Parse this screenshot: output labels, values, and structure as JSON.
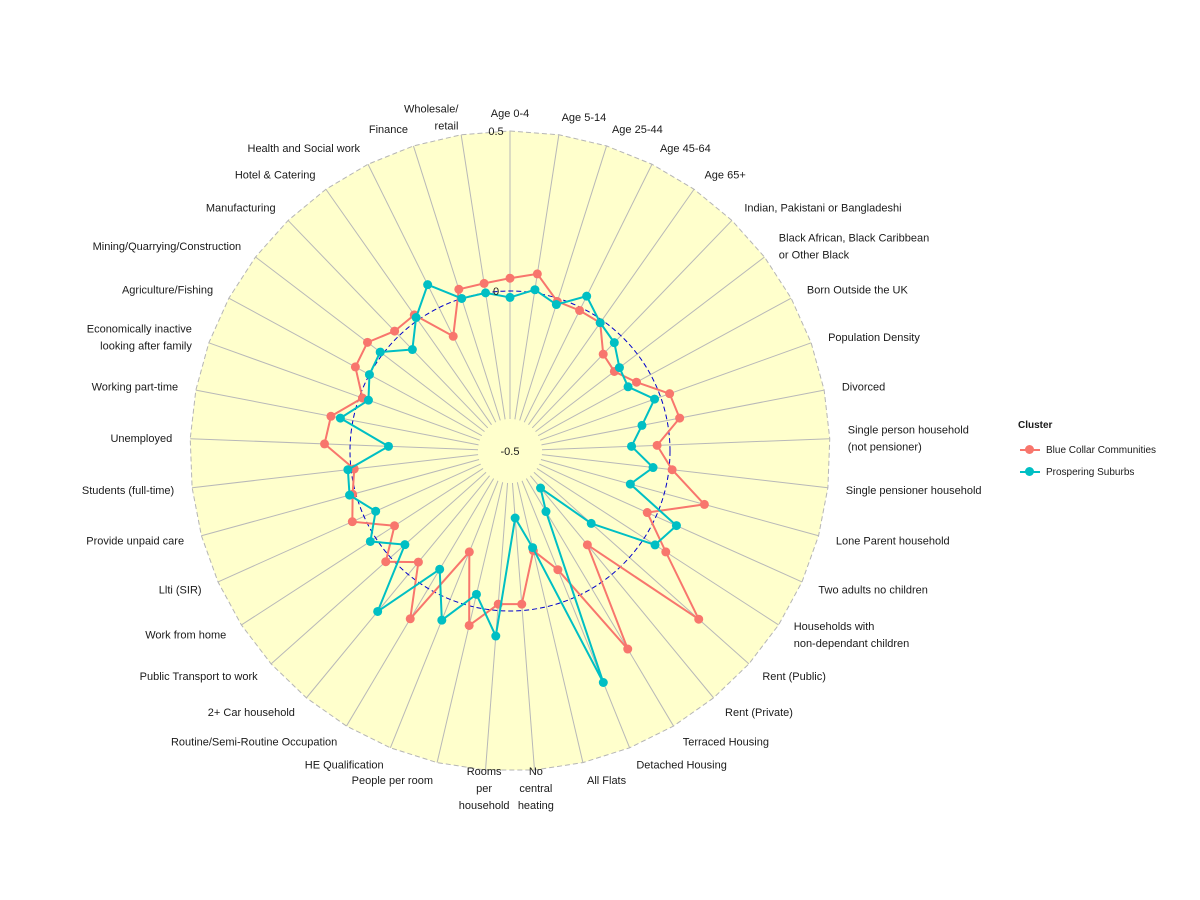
{
  "chart_data": {
    "type": "radar",
    "title": "",
    "center": [
      510,
      451
    ],
    "radial_axis": {
      "min": -0.5,
      "max": 0.5,
      "ticks": [
        {
          "value": -0.5,
          "label": "-0.5"
        },
        {
          "value": 0,
          "label": "0"
        },
        {
          "value": 0.5,
          "label": "0.5"
        }
      ],
      "zero_line": "dashed blue circle"
    },
    "panel_fill": "#FFFFCC",
    "categories": [
      [
        "Age 0-4"
      ],
      [
        "Age 5-14"
      ],
      [
        "Age 25-44"
      ],
      [
        "Age 45-64"
      ],
      [
        "Age 65+"
      ],
      [
        "Indian, Pakistani or Bangladeshi"
      ],
      [
        "Black African, Black Caribbean",
        "or Other Black"
      ],
      [
        "Born Outside the UK"
      ],
      [
        "Population Density"
      ],
      [
        "Divorced"
      ],
      [
        "Single person household",
        "(not pensioner)"
      ],
      [
        "Single pensioner household"
      ],
      [
        "Lone Parent household"
      ],
      [
        "Two adults no children"
      ],
      [
        "Households with",
        "non-dependant children"
      ],
      [
        "Rent (Public)"
      ],
      [
        "Rent (Private)"
      ],
      [
        "Terraced Housing"
      ],
      [
        "Detached Housing"
      ],
      [
        "All Flats"
      ],
      [
        "No",
        "central",
        "heating"
      ],
      [
        "Rooms",
        "per",
        "household"
      ],
      [
        "People per room"
      ],
      [
        "HE Qualification"
      ],
      [
        "Routine/Semi-Routine Occupation"
      ],
      [
        "2+ Car household"
      ],
      [
        "Public Transport to work"
      ],
      [
        "Work from home"
      ],
      [
        "Llti (SIR)"
      ],
      [
        "Provide unpaid care"
      ],
      [
        "Students (full-time)"
      ],
      [
        "Unemployed"
      ],
      [
        "Working part-time"
      ],
      [
        "Economically inactive",
        "looking after family"
      ],
      [
        "Agriculture/Fishing"
      ],
      [
        "Mining/Quarrying/Construction"
      ],
      [
        "Manufacturing"
      ],
      [
        "Hotel & Catering"
      ],
      [
        "Health and Social work"
      ],
      [
        "Finance"
      ],
      [
        "Wholesale/",
        "retail"
      ]
    ],
    "series": [
      {
        "name": "Blue Collar Communities",
        "color": "#F8766D",
        "values": [
          0.04,
          0.06,
          -0.01,
          -0.01,
          -0.01,
          -0.08,
          -0.09,
          -0.05,
          0.03,
          0.04,
          -0.04,
          0.01,
          0.13,
          -0.03,
          0.08,
          0.29,
          -0.12,
          0.22,
          -0.1,
          -0.18,
          -0.02,
          -0.02,
          0.06,
          -0.16,
          0.11,
          -0.05,
          0.02,
          -0.07,
          0.04,
          0.01,
          -0.01,
          0.08,
          0.07,
          -0.01,
          0.05,
          0.06,
          0.02,
          0.02,
          -0.1,
          0.03,
          0.03
        ]
      },
      {
        "name": "Prospering Suburbs",
        "color": "#00BFC4",
        "values": [
          -0.02,
          0.01,
          -0.02,
          0.04,
          -0.01,
          -0.03,
          -0.07,
          -0.08,
          -0.02,
          -0.08,
          -0.12,
          -0.05,
          -0.11,
          0.07,
          0.04,
          -0.16,
          -0.35,
          -0.28,
          0.28,
          -0.19,
          -0.29,
          0.08,
          -0.04,
          0.07,
          -0.07,
          0.15,
          -0.06,
          0.02,
          -0.04,
          0.02,
          0.01,
          -0.12,
          0.04,
          -0.03,
          0.0,
          0.01,
          -0.06,
          0.01,
          0.08,
          0.0,
          0.0
        ]
      }
    ],
    "legend": {
      "title": "Cluster",
      "position": "right",
      "items": [
        {
          "label": "Blue Collar Communities",
          "color": "#F8766D"
        },
        {
          "label": "Prospering Suburbs",
          "color": "#00BFC4"
        }
      ]
    }
  }
}
